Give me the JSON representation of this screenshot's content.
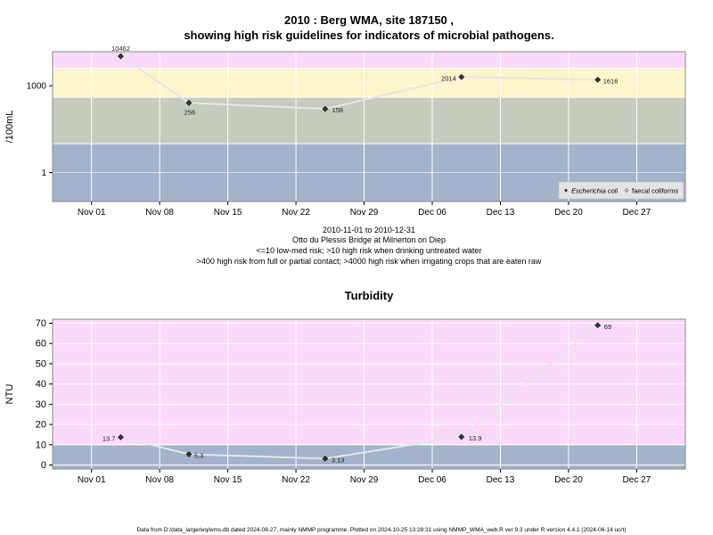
{
  "chart_data": [
    {
      "type": "scatter",
      "title_line1": "2010 : Berg WMA, site 187150 ,",
      "title_line2": "showing high risk guidelines for indicators of microbial pathogens.",
      "ylabel": "/100mL",
      "y_scale": "log10",
      "ylim": [
        0.1,
        15000
      ],
      "yticks": [
        1,
        1000
      ],
      "ytick_labels": [
        "1",
        "1000"
      ],
      "xlim": [
        "2010-10-28",
        "2011-01-01"
      ],
      "xticks": [
        "2010-11-01",
        "2010-11-08",
        "2010-11-15",
        "2010-11-22",
        "2010-11-29",
        "2010-12-06",
        "2010-12-13",
        "2010-12-20",
        "2010-12-27"
      ],
      "xtick_labels": [
        "Nov 01",
        "Nov 08",
        "Nov 15",
        "Nov 22",
        "Nov 29",
        "Dec 06",
        "Dec 13",
        "Dec 20",
        "Dec 27"
      ],
      "bands": [
        {
          "from": 0.1,
          "to": 10,
          "color": "#a3b3cb"
        },
        {
          "from": 10,
          "to": 400,
          "color": "#c5cbbd"
        },
        {
          "from": 400,
          "to": 4000,
          "color": "#fbf5c9"
        },
        {
          "from": 4000,
          "to": 15000,
          "color": "#fbd9fb"
        }
      ],
      "series": [
        {
          "name": "Escherichia coli",
          "x": [
            "2010-11-04",
            "2010-11-11",
            "2010-11-25",
            "2010-12-09",
            "2010-12-23"
          ],
          "values": [
            10462,
            256,
            158,
            2014,
            1616
          ],
          "labels": [
            "10462",
            "256",
            "158",
            "2014",
            "1616"
          ]
        }
      ],
      "legend": {
        "position": "bottom-right",
        "entries": [
          "Escherichia coli",
          "faecal coliforms"
        ]
      },
      "notes": [
        "2010-11-01 to 2010-12-31",
        "Otto du Plessis Bridge at Milnerton on Diep",
        "<=10 low-med risk; >10 high risk when drinking untreated water",
        ">400 high risk from full or partial contact; >4000 high risk when irrigating crops that are eaten raw"
      ]
    },
    {
      "type": "scatter",
      "title": "Turbidity",
      "ylabel": "NTU",
      "ylim": [
        -2,
        72
      ],
      "yticks": [
        0,
        10,
        20,
        30,
        40,
        50,
        60,
        70
      ],
      "ytick_labels": [
        "0",
        "10",
        "20",
        "30",
        "40",
        "50",
        "60",
        "70"
      ],
      "xlim": [
        "2010-10-28",
        "2011-01-01"
      ],
      "xticks": [
        "2010-11-01",
        "2010-11-08",
        "2010-11-15",
        "2010-11-22",
        "2010-11-29",
        "2010-12-06",
        "2010-12-13",
        "2010-12-20",
        "2010-12-27"
      ],
      "xtick_labels": [
        "Nov 01",
        "Nov 08",
        "Nov 15",
        "Nov 22",
        "Nov 29",
        "Dec 06",
        "Dec 13",
        "Dec 20",
        "Dec 27"
      ],
      "bands": [
        {
          "from": -2,
          "to": 10,
          "color": "#a3b3cb"
        },
        {
          "from": 10,
          "to": 72,
          "color": "#fbd9fb"
        }
      ],
      "series": [
        {
          "x": [
            "2010-11-04",
            "2010-11-11",
            "2010-11-25",
            "2010-12-09",
            "2010-12-23"
          ],
          "values": [
            13.7,
            5.3,
            3.13,
            13.9,
            69
          ],
          "labels": [
            "13.7",
            "5.3",
            "3.13",
            "13.9",
            "69"
          ]
        }
      ]
    }
  ],
  "footer": "Data from D:/data_large/wq/wms.db dated 2024-08-27, mainly NMMP programme. Plotted on 2024-10-25 13:28:31 using NMMP_WMA_web.R ver 9.3 under R version 4.4.1 (2024-06-14 ucrt)"
}
